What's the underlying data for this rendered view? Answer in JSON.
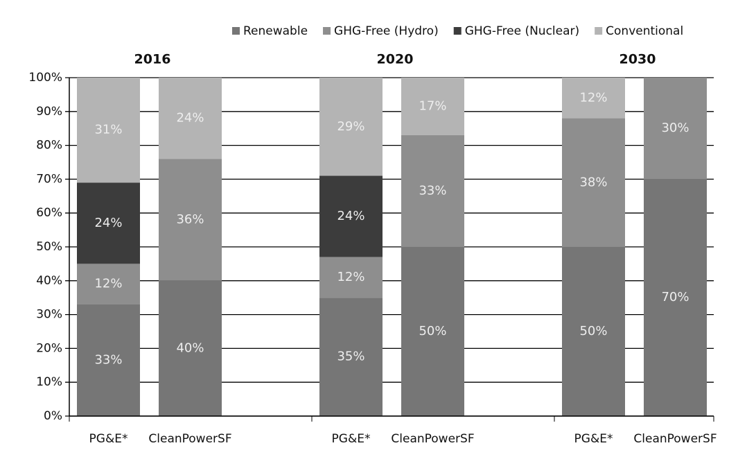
{
  "chart_data": {
    "type": "stacked_bar",
    "groups": [
      "2016",
      "2020",
      "2030"
    ],
    "categories": [
      "PG&E*",
      "CleanPowerSF",
      "PG&E*",
      "CleanPowerSF",
      "PG&E*",
      "CleanPowerSF"
    ],
    "series": [
      {
        "name": "Renewable",
        "color": "#767676",
        "values": [
          33,
          40,
          35,
          50,
          50,
          70
        ],
        "value_labels": [
          "33%",
          "40%",
          "35%",
          "50%",
          "50%",
          "70%"
        ]
      },
      {
        "name": "GHG-Free (Hydro)",
        "color": "#8e8e8e",
        "values": [
          12,
          36,
          12,
          33,
          38,
          30
        ],
        "value_labels": [
          "12%",
          "36%",
          "12%",
          "33%",
          "38%",
          "30%"
        ]
      },
      {
        "name": "GHG-Free (Nuclear)",
        "color": "#3c3c3c",
        "values": [
          24,
          null,
          24,
          null,
          null,
          null
        ],
        "value_labels": [
          "24%",
          null,
          "24%",
          null,
          null,
          null
        ]
      },
      {
        "name": "Conventional",
        "color": "#b4b4b4",
        "values": [
          31,
          24,
          29,
          17,
          12,
          null
        ],
        "value_labels": [
          "31%",
          "24%",
          "29%",
          "17%",
          "12%",
          null
        ]
      }
    ],
    "ylim": [
      0,
      100
    ],
    "yticks": [
      {
        "value": 0,
        "label": "0%"
      },
      {
        "value": 10,
        "label": "10%"
      },
      {
        "value": 20,
        "label": "20%"
      },
      {
        "value": 30,
        "label": "30%"
      },
      {
        "value": 40,
        "label": "40%"
      },
      {
        "value": 50,
        "label": "50%"
      },
      {
        "value": 60,
        "label": "60%"
      },
      {
        "value": 70,
        "label": "70%"
      },
      {
        "value": 80,
        "label": "80%"
      },
      {
        "value": 90,
        "label": "90%"
      },
      {
        "value": 100,
        "label": "100%"
      }
    ],
    "grid": true,
    "legend": "top"
  }
}
